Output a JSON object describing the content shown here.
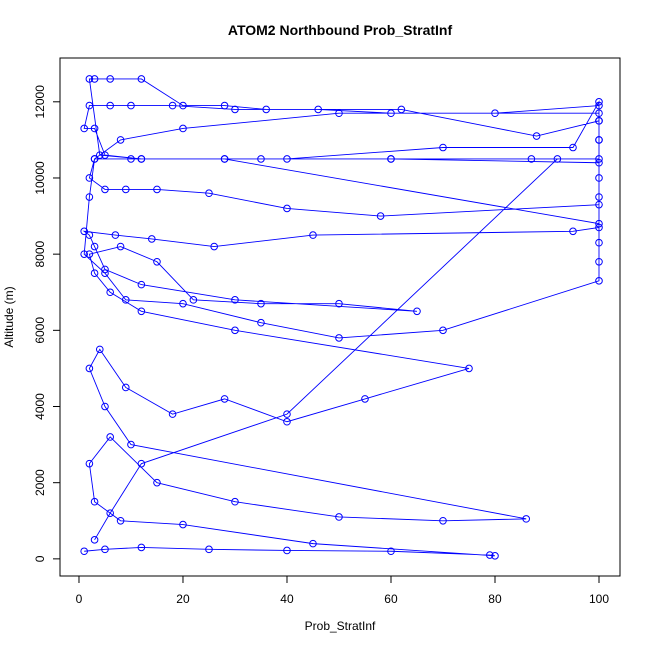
{
  "chart_data": {
    "type": "line",
    "title": "ATOM2 Northbound Prob_StratInf",
    "x_label": "Prob_StratInf",
    "y_label": "Altitude (m)",
    "color": "#0000ff",
    "xlim": [
      -3.65,
      104.04
    ],
    "ylim": [
      -450,
      13150
    ],
    "xticks": [
      0,
      20,
      40,
      60,
      80,
      100
    ],
    "yticks": [
      0,
      2000,
      4000,
      6000,
      8000,
      10000,
      12000
    ],
    "x": [
      1,
      5,
      12,
      25,
      40,
      60,
      79,
      80,
      45,
      20,
      8,
      3,
      2,
      6,
      15,
      30,
      50,
      70,
      86,
      10,
      5,
      2,
      4,
      9,
      18,
      28,
      40,
      55,
      75,
      30,
      12,
      6,
      3,
      2,
      8,
      15,
      22,
      35,
      50,
      65,
      30,
      12,
      5,
      3,
      2,
      1,
      7,
      14,
      26,
      45,
      95,
      100,
      100,
      100,
      60,
      28,
      12,
      5,
      3,
      1,
      2,
      6,
      10,
      18,
      30,
      62,
      88,
      100,
      100,
      50,
      20,
      8,
      3,
      2,
      5,
      9,
      15,
      25,
      40,
      58,
      100,
      100,
      100,
      100,
      95,
      70,
      40,
      12,
      4,
      2,
      3,
      6,
      12,
      20,
      28,
      36,
      46,
      60,
      80,
      100,
      100,
      100,
      100,
      87,
      60,
      35,
      10,
      3,
      2,
      1,
      5,
      9,
      20,
      35,
      50,
      70,
      100,
      100,
      100,
      100,
      28,
      92,
      40,
      12,
      6,
      3
    ],
    "values": [
      200,
      250,
      300,
      250,
      220,
      200,
      100,
      80,
      400,
      900,
      1000,
      1500,
      2500,
      3200,
      2000,
      1500,
      1100,
      1000,
      1050,
      3000,
      4000,
      5000,
      5500,
      4500,
      3800,
      4200,
      3600,
      4200,
      5000,
      6000,
      6500,
      7000,
      7500,
      8000,
      8200,
      7800,
      6800,
      6700,
      6700,
      6500,
      6800,
      7200,
      7600,
      8200,
      8500,
      8600,
      8500,
      8400,
      8200,
      8500,
      8600,
      8700,
      9500,
      10400,
      10500,
      10500,
      10500,
      10600,
      11300,
      11300,
      11900,
      11900,
      11900,
      11900,
      11800,
      11800,
      11100,
      11500,
      11700,
      11700,
      11300,
      11000,
      10500,
      10000,
      9700,
      9700,
      9700,
      9600,
      9200,
      9000,
      9300,
      10000,
      11000,
      12000,
      10800,
      10800,
      10500,
      10500,
      10600,
      12600,
      12600,
      12600,
      12600,
      11900,
      11900,
      11800,
      11800,
      11700,
      11700,
      11900,
      11500,
      11000,
      10500,
      10500,
      10500,
      10500,
      10500,
      10500,
      9500,
      8000,
      7500,
      6800,
      6700,
      6200,
      5800,
      6000,
      7300,
      7800,
      8300,
      8800,
      10500,
      10500,
      3800,
      2500,
      1200,
      500
    ]
  }
}
